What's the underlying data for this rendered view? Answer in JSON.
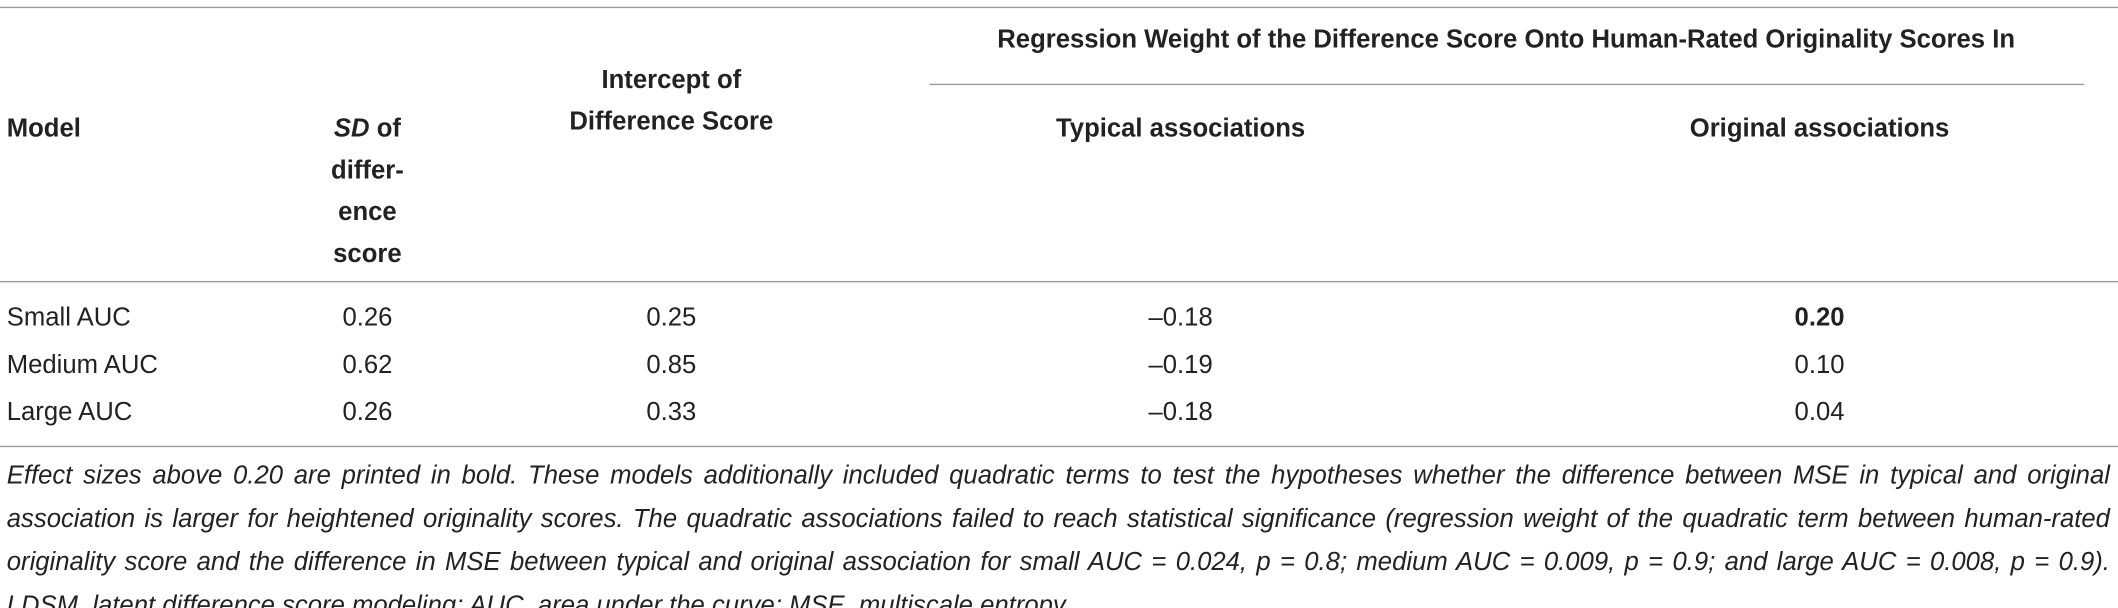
{
  "table": {
    "header": {
      "model": "Model",
      "sd": {
        "italic": "SD",
        "rest": " of differ­ence score"
      },
      "intercept": "Intercept of Difference Score",
      "span": "Regression Weight of the Difference Score Onto Human-Rated Originality Scores In",
      "typical": "Typical associations",
      "original": "Original associations"
    },
    "rows": [
      [
        "Small AUC",
        "0.26",
        "0.25",
        "–0.18",
        "0.20"
      ],
      [
        "Medium AUC",
        "0.62",
        "0.85",
        "–0.19",
        "0.10"
      ],
      [
        "Large AUC",
        "0.26",
        "0.33",
        "–0.18",
        "0.04"
      ]
    ],
    "footnote": "Effect sizes above 0.20 are printed in bold. These models additionally included quadratic terms to test the hypotheses whether the difference between MSE in typical and original association is larger for heightened originality scores. The quadratic associations failed to reach statistical significance (regression weight of the quadratic term between human-rated originality score and the difference in MSE between typical and original association for small AUC = 0.024, p = 0.8; medium AUC = 0.009, p = 0.9; and large AUC = 0.008, p = 0.9). LDSM, latent difference score modeling; AUC, area under the curve; MSE, multiscale entropy."
  }
}
